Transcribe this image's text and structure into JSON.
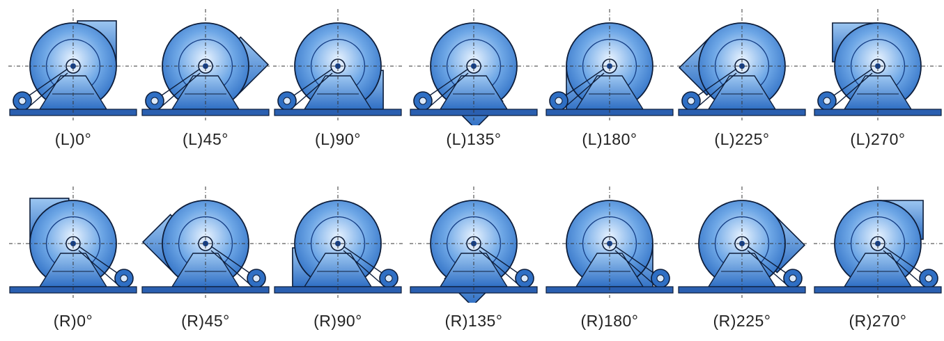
{
  "colors": {
    "fan_body": "#2f6fc4",
    "fan_light": "#e8f3ff",
    "fan_dark": "#163f86",
    "outline": "#0d1d3a",
    "base": "#2a5fb0",
    "centerline": "#333333",
    "label": "#222222"
  },
  "rows": [
    {
      "hand": "L",
      "positions": [
        {
          "label": "(L)0°",
          "angle": 0
        },
        {
          "label": "(L)45°",
          "angle": 45
        },
        {
          "label": "(L)90°",
          "angle": 90
        },
        {
          "label": "(L)135°",
          "angle": 135
        },
        {
          "label": "(L)180°",
          "angle": 180
        },
        {
          "label": "(L)225°",
          "angle": 225
        },
        {
          "label": "(L)270°",
          "angle": 270
        }
      ]
    },
    {
      "hand": "R",
      "positions": [
        {
          "label": "(R)0°",
          "angle": 0
        },
        {
          "label": "(R)45°",
          "angle": 45
        },
        {
          "label": "(R)90°",
          "angle": 90
        },
        {
          "label": "(R)135°",
          "angle": 135
        },
        {
          "label": "(R)180°",
          "angle": 180
        },
        {
          "label": "(R)225°",
          "angle": 225
        },
        {
          "label": "(R)270°",
          "angle": 270
        }
      ]
    }
  ]
}
